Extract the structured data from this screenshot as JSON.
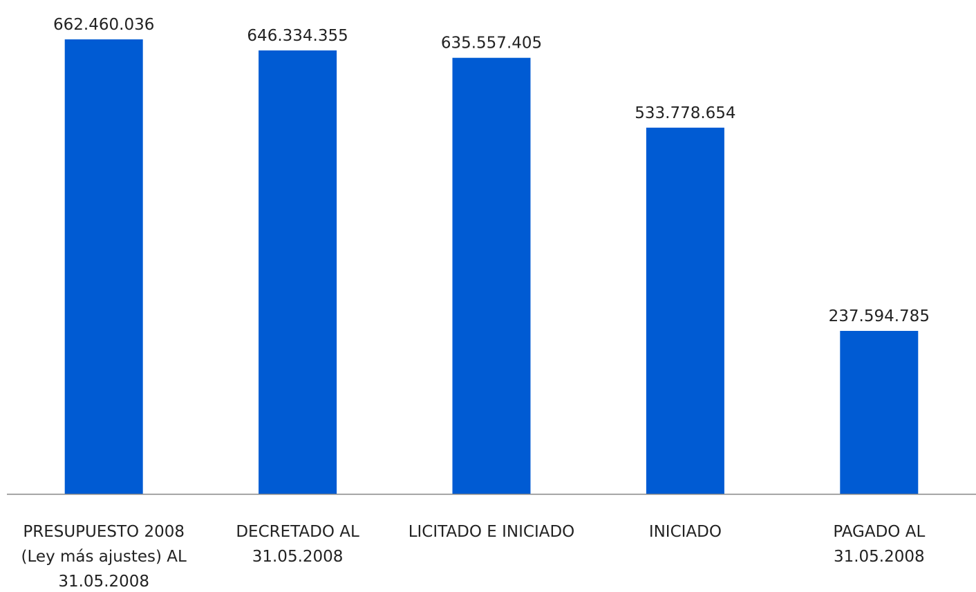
{
  "chart_data": {
    "type": "bar",
    "categories": [
      [
        "PRESUPUESTO 2008",
        "(Ley más ajustes) AL",
        "31.05.2008"
      ],
      [
        "DECRETADO AL",
        "31.05.2008"
      ],
      [
        "LICITADO E INICIADO"
      ],
      [
        "INICIADO"
      ],
      [
        "PAGADO AL",
        "31.05.2008"
      ]
    ],
    "values": [
      662460036,
      646334355,
      635557405,
      533778654,
      237594785
    ],
    "data_labels": [
      "662.460.036",
      "646.334.355",
      "635.557.405",
      "533.778.654",
      "237.594.785"
    ],
    "ylim": [
      0,
      662460036
    ],
    "grid": false,
    "legend": "none",
    "bar_color": "#005BD3",
    "axis_color": "#868686"
  }
}
